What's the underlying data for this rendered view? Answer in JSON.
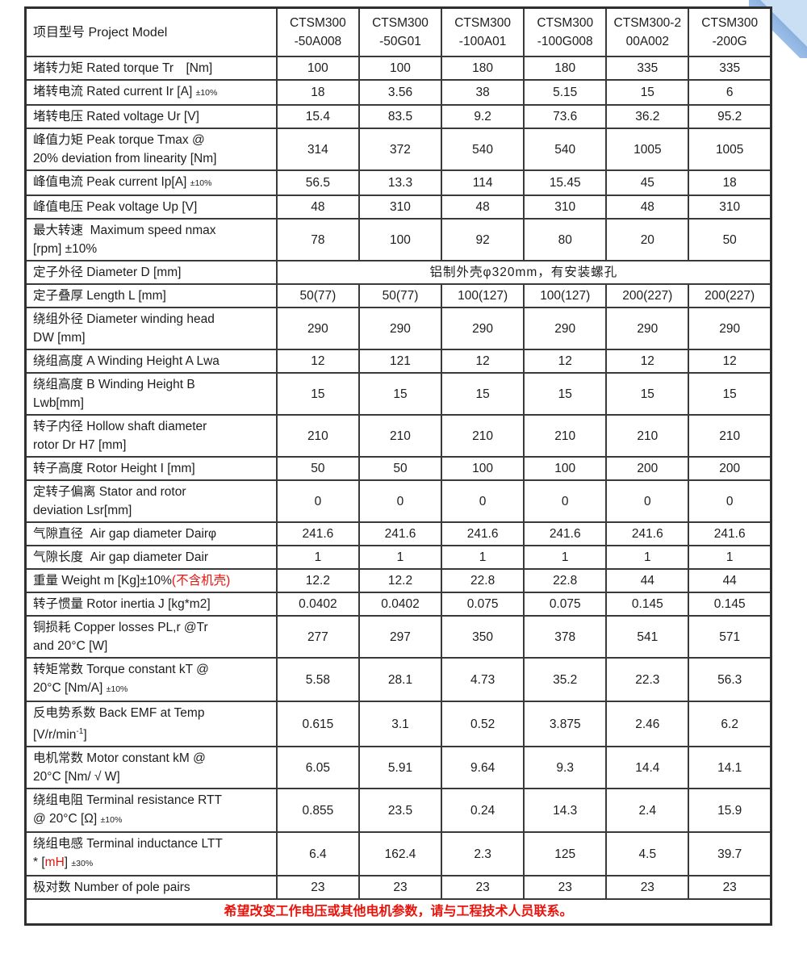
{
  "colors": {
    "accent_red": "#e8130b",
    "table_border": "#3a3a3a",
    "corner_ribbon_light": "#cadff3",
    "corner_ribbon_dark": "#8ab1de"
  },
  "table": {
    "corner_label": "项目型号 Project Model",
    "models": [
      "CTSM300\n-50A008",
      "CTSM300\n-50G01",
      "CTSM300\n-100A01",
      "CTSM300\n-100G008",
      "CTSM300-2\n00A002",
      "CTSM300\n-200G"
    ],
    "rows": [
      {
        "label": [
          {
            "t": "堵转力矩 Rated torque Tr　[Nm]"
          }
        ],
        "values": [
          "100",
          "100",
          "180",
          "180",
          "335",
          "335"
        ]
      },
      {
        "label": [
          {
            "t": "堵转电流 Rated current Ir [A] "
          },
          {
            "t": "±10%",
            "s": "small"
          }
        ],
        "values": [
          "18",
          "3.56",
          "38",
          "5.15",
          "15",
          "6"
        ]
      },
      {
        "label": [
          {
            "t": "堵转电压 Rated voltage Ur [V]"
          }
        ],
        "values": [
          "15.4",
          "83.5",
          "9.2",
          "73.6",
          "36.2",
          "95.2"
        ]
      },
      {
        "label": [
          {
            "t": "峰值力矩 Peak torque Tmax @\n20% deviation from linearity [Nm]"
          }
        ],
        "values": [
          "314",
          "372",
          "540",
          "540",
          "1005",
          "1005"
        ]
      },
      {
        "label": [
          {
            "t": "峰值电流 Peak current Ip[A] "
          },
          {
            "t": "±10%",
            "s": "small"
          }
        ],
        "values": [
          "56.5",
          "13.3",
          "114",
          "15.45",
          "45",
          "18"
        ]
      },
      {
        "label": [
          {
            "t": "峰值电压 Peak voltage Up [V]"
          }
        ],
        "values": [
          "48",
          "310",
          "48",
          "310",
          "48",
          "310"
        ]
      },
      {
        "label": [
          {
            "t": "最大转速  Maximum speed nmax\n[rpm] ±10%"
          }
        ],
        "values": [
          "78",
          "100",
          "92",
          "80",
          "20",
          "50"
        ]
      },
      {
        "label": [
          {
            "t": "定子外径 Diameter D [mm]"
          }
        ],
        "merged": "铝制外壳φ320mm，有安装螺孔"
      },
      {
        "label": [
          {
            "t": "定子叠厚 Length L [mm]"
          }
        ],
        "values": [
          "50(77)",
          "50(77)",
          "100(127)",
          "100(127)",
          "200(227)",
          "200(227)"
        ]
      },
      {
        "label": [
          {
            "t": "绕组外径 Diameter winding head\nDW [mm]"
          }
        ],
        "values": [
          "290",
          "290",
          "290",
          "290",
          "290",
          "290"
        ]
      },
      {
        "label": [
          {
            "t": "绕组高度 A Winding Height A Lwa"
          }
        ],
        "values": [
          "12",
          "121",
          "12",
          "12",
          "12",
          "12"
        ]
      },
      {
        "label": [
          {
            "t": "绕组高度 B Winding Height B\nLwb[mm]"
          }
        ],
        "values": [
          "15",
          "15",
          "15",
          "15",
          "15",
          "15"
        ]
      },
      {
        "label": [
          {
            "t": "转子内径 Hollow shaft diameter\nrotor Dr H7 [mm]"
          }
        ],
        "values": [
          "210",
          "210",
          "210",
          "210",
          "210",
          "210"
        ]
      },
      {
        "label": [
          {
            "t": "转子高度 Rotor Height I [mm]"
          }
        ],
        "values": [
          "50",
          "50",
          "100",
          "100",
          "200",
          "200"
        ]
      },
      {
        "label": [
          {
            "t": "定转子偏离 Stator and rotor\ndeviation Lsr[mm]"
          }
        ],
        "values": [
          "0",
          "0",
          "0",
          "0",
          "0",
          "0"
        ]
      },
      {
        "label": [
          {
            "t": "气隙直径  Air gap diameter Dairφ"
          }
        ],
        "values": [
          "241.6",
          "241.6",
          "241.6",
          "241.6",
          "241.6",
          "241.6"
        ]
      },
      {
        "label": [
          {
            "t": "气隙长度  Air gap diameter Dair"
          }
        ],
        "values": [
          "1",
          "1",
          "1",
          "1",
          "1",
          "1"
        ]
      },
      {
        "label": [
          {
            "t": "重量 Weight m [Kg]±10%"
          },
          {
            "t": "(不含机壳)",
            "s": "red"
          }
        ],
        "values": [
          "12.2",
          "12.2",
          "22.8",
          "22.8",
          "44",
          "44"
        ]
      },
      {
        "label": [
          {
            "t": "转子惯量 Rotor inertia J [kg*m2]"
          }
        ],
        "values": [
          "0.0402",
          "0.0402",
          "0.075",
          "0.075",
          "0.145",
          "0.145"
        ]
      },
      {
        "label": [
          {
            "t": "铜损耗 Copper losses PL,r @Tr\nand 20°C [W]"
          }
        ],
        "values": [
          "277",
          "297",
          "350",
          "378",
          "541",
          "571"
        ]
      },
      {
        "label": [
          {
            "t": "转矩常数 Torque constant kT @\n20°C [Nm/A] "
          },
          {
            "t": "±10%",
            "s": "small"
          }
        ],
        "values": [
          "5.58",
          "28.1",
          "4.73",
          "35.2",
          "22.3",
          "56.3"
        ]
      },
      {
        "label": [
          {
            "t": "反电势系数 Back EMF at Temp\n[V/r/min"
          },
          {
            "t": "-1",
            "s": "sup"
          },
          {
            "t": "]"
          }
        ],
        "values": [
          "0.615",
          "3.1",
          "0.52",
          "3.875",
          "2.46",
          "6.2"
        ]
      },
      {
        "label": [
          {
            "t": "电机常数 Motor constant kM @\n20°C [Nm/ √ W]"
          }
        ],
        "values": [
          "6.05",
          "5.91",
          "9.64",
          "9.3",
          "14.4",
          "14.1"
        ]
      },
      {
        "label": [
          {
            "t": "绕组电阻 Terminal resistance RTT\n@ 20°C [Ω] "
          },
          {
            "t": "±10%",
            "s": "small"
          }
        ],
        "values": [
          "0.855",
          "23.5",
          "0.24",
          "14.3",
          "2.4",
          "15.9"
        ]
      },
      {
        "label": [
          {
            "t": "绕组电感 Terminal inductance LTT\n* ["
          },
          {
            "t": "mH",
            "s": "red"
          },
          {
            "t": "] "
          },
          {
            "t": "±30%",
            "s": "small"
          }
        ],
        "values": [
          "6.4",
          "162.4",
          "2.3",
          "125",
          "4.5",
          "39.7"
        ]
      },
      {
        "label": [
          {
            "t": "极对数 Number of pole pairs"
          }
        ],
        "values": [
          "23",
          "23",
          "23",
          "23",
          "23",
          "23"
        ]
      }
    ],
    "footer": "希望改变工作电压或其他电机参数，请与工程技术人员联系。"
  }
}
